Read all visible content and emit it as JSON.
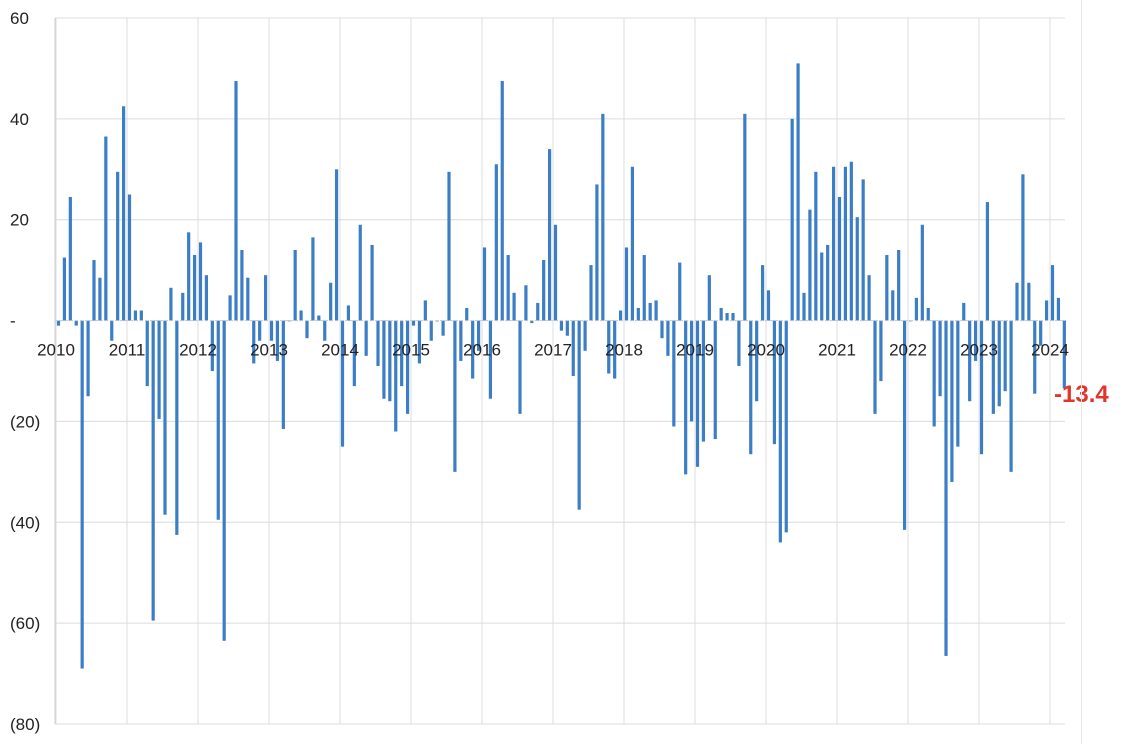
{
  "chart_data": {
    "type": "bar",
    "title": "",
    "xlabel": "",
    "ylabel": "",
    "ylim": [
      -80,
      60
    ],
    "yticks": [
      60,
      40,
      20,
      0,
      -20,
      -40,
      -60,
      -80
    ],
    "ytick_labels": [
      "60",
      "40",
      "20",
      "-",
      "(20)",
      "(40)",
      "(60)",
      "(80)"
    ],
    "xticks": [
      "2010",
      "2011",
      "2012",
      "2013",
      "2014",
      "2015",
      "2016",
      "2017",
      "2018",
      "2019",
      "2020",
      "2021",
      "2022",
      "2023",
      "2024"
    ],
    "x_start_year": 2010,
    "grid": true,
    "bar_color": "#3b7ec6",
    "last_value_label": "-13.4",
    "last_value_color": "#e2352c",
    "series": [
      {
        "values": [
          -1,
          12.5,
          24.5,
          -1,
          -69,
          -15,
          12,
          8.5,
          36.5,
          -4,
          29.5,
          42.5,
          25,
          2,
          2,
          -13,
          -59.5,
          -19.5,
          -38.5,
          6.5,
          -42.5,
          5.5,
          17.5,
          13,
          15.5,
          9,
          -10,
          -39.5,
          -63.5,
          5,
          47.5,
          14,
          8.5,
          -8.5,
          -4,
          9,
          -4,
          -8,
          -21.5,
          0,
          14,
          2,
          -3.5,
          16.5,
          1,
          -4,
          7.5,
          30,
          -25,
          3,
          -13,
          19,
          -7,
          15,
          -9,
          -15.5,
          -16,
          -22,
          -13,
          -18.5,
          -1,
          -8.5,
          4,
          -4,
          0,
          -3,
          29.5,
          -30,
          -8,
          2.5,
          -11.5,
          -6,
          14.5,
          -15.5,
          31,
          47.5,
          13,
          5.5,
          -18.5,
          7,
          -0.5,
          3.5,
          12,
          34,
          19,
          -2,
          -3,
          -11,
          -37.5,
          -6,
          11,
          27,
          41,
          -10.5,
          -11.5,
          2,
          14.5,
          30.5,
          2.5,
          13,
          3.5,
          4,
          -3.5,
          -7,
          -21,
          11.5,
          -30.5,
          -20,
          -29,
          -24,
          9,
          -23.5,
          2.5,
          1.5,
          1.5,
          -9,
          41,
          -26.5,
          -16,
          11,
          6,
          -24.5,
          -44,
          -42,
          40,
          51,
          5.5,
          22,
          29.5,
          13.5,
          15,
          30.5,
          24.5,
          30.5,
          31.5,
          20.5,
          28,
          9,
          -18.5,
          -12,
          13,
          6,
          14,
          -41.5,
          0,
          4.5,
          19,
          2.5,
          -21,
          -15,
          -66.5,
          -32,
          -25,
          3.5,
          -16,
          -8,
          -26.5,
          23.5,
          -18.5,
          -17,
          -14,
          -30,
          7.5,
          29,
          7.5,
          -14.5,
          -5,
          4,
          11,
          4.5,
          -13.4
        ]
      }
    ]
  }
}
